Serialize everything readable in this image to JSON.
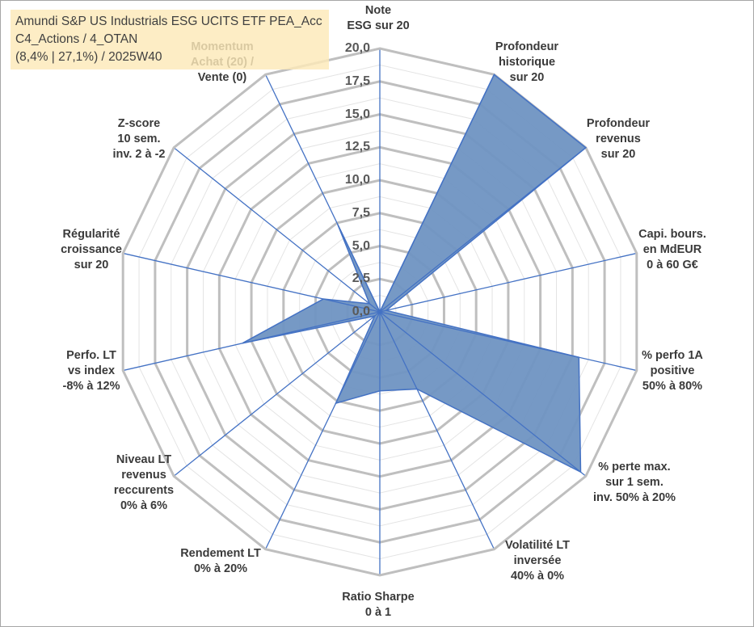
{
  "title": {
    "line1": "Amundi S&P US Industrials ESG UCITS ETF PEA_Acc",
    "line2": "C4_Actions / 4_OTAN",
    "line3": "(8,4% | 27,1%) / 2025W40"
  },
  "chart_data": {
    "type": "radar",
    "rmin": 0,
    "rmax": 20,
    "ticks": [
      "0,0",
      "2,5",
      "5,0",
      "7,5",
      "10,0",
      "12,5",
      "15,0",
      "17,5",
      "20,0"
    ],
    "grid": true,
    "colors": {
      "fill": "#6f93c2",
      "line": "#4472c4",
      "grid": "#bfbfbf"
    },
    "axes": [
      {
        "label": [
          "Note",
          "ESG sur 20"
        ],
        "value": 0
      },
      {
        "label": [
          "Profondeur",
          "historique",
          "sur 20"
        ],
        "value": 20
      },
      {
        "label": [
          "Profondeur",
          "revenus",
          "sur 20"
        ],
        "value": 20
      },
      {
        "label": [
          "Capi. bours.",
          "en MdEUR",
          "0 à 60 G€"
        ],
        "value": 0.5
      },
      {
        "label": [
          "% perfo 1A",
          "positive",
          "50% à 80%"
        ],
        "value": 15.5
      },
      {
        "label": [
          "% perte max.",
          "sur 1 sem.",
          "inv. 50% à 20%"
        ],
        "value": 19.5
      },
      {
        "label": [
          "Volatilité LT",
          "inversée",
          "40% à 0%"
        ],
        "value": 6.5
      },
      {
        "label": [
          "Ratio Sharpe",
          "0 à 1"
        ],
        "value": 6
      },
      {
        "label": [
          "Rendement LT",
          "0% à 20%"
        ],
        "value": 7.7
      },
      {
        "label": [
          "Niveau LT",
          "revenus",
          "reccurents",
          "0% à 6%"
        ],
        "value": 0.5
      },
      {
        "label": [
          "Perfo. LT",
          "vs index",
          "-8% à 12%"
        ],
        "value": 10.7
      },
      {
        "label": [
          "Régularité",
          "croissance",
          "sur 20"
        ],
        "value": 4.4
      },
      {
        "label": [
          "Z-score",
          "10 sem.",
          "inv. 2 à -2"
        ],
        "value": 1
      },
      {
        "label": [
          "Momentum",
          "Achat (20) /",
          "Vente (0)"
        ],
        "value": 7.4
      }
    ]
  }
}
